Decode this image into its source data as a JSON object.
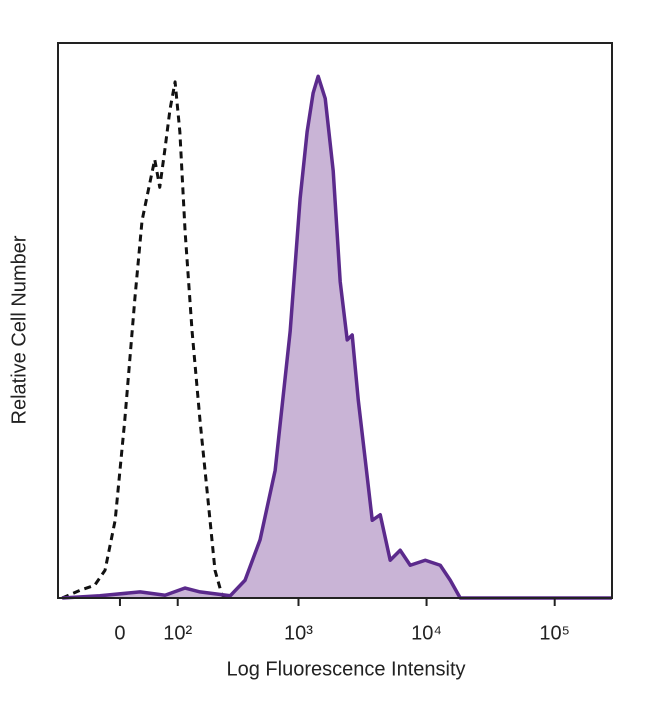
{
  "chart_data": {
    "type": "histogram-overlay",
    "xlabel": "Log Fluorescence Intensity",
    "ylabel": "Relative Cell Number",
    "xscale": "logicle",
    "xlim": [
      -110,
      280000
    ],
    "ylim": [
      0,
      100
    ],
    "xticks": [
      0,
      {
        "value": 100,
        "label": "10²"
      },
      {
        "value": 1000,
        "label": "10³"
      },
      {
        "value": 10000,
        "label": "10⁴"
      },
      {
        "value": 100000,
        "label": "10⁵"
      }
    ],
    "series": [
      {
        "color": "#111111",
        "style": "dashed",
        "fill": "none",
        "x": [
          -100,
          -63,
          -38,
          -22,
          -7,
          7,
          22,
          33,
          46,
          54,
          63,
          73,
          83,
          94,
          105,
          118,
          137,
          161,
          188,
          216,
          247,
          288
        ],
        "values": [
          0,
          1.4,
          2.3,
          5,
          14,
          32,
          54,
          68,
          75,
          79,
          74,
          81,
          88,
          93,
          84,
          66,
          48,
          32,
          18,
          5,
          0.5,
          0
        ]
      },
      {
        "color": "#5b2a8c",
        "style": "solid",
        "fill": "#c9b4d6",
        "x": [
          -100,
          -30,
          30,
          73,
          118,
          161,
          288,
          379,
          499,
          656,
          860,
          1030,
          1168,
          1302,
          1425,
          1618,
          1867,
          2118,
          2403,
          2628,
          2930,
          3323,
          3768,
          4350,
          5203,
          6226,
          7456,
          9774,
          12790,
          15310,
          18310,
          280000
        ],
        "values": [
          0,
          0.4,
          1.1,
          0.5,
          1.8,
          1.1,
          0.4,
          3.2,
          10.5,
          23,
          48,
          72,
          84,
          91,
          94,
          90,
          77,
          57,
          46.5,
          47.4,
          35.7,
          24.9,
          14,
          15,
          6.8,
          8.6,
          5.9,
          6.8,
          5.9,
          3.2,
          0,
          0
        ]
      }
    ]
  }
}
